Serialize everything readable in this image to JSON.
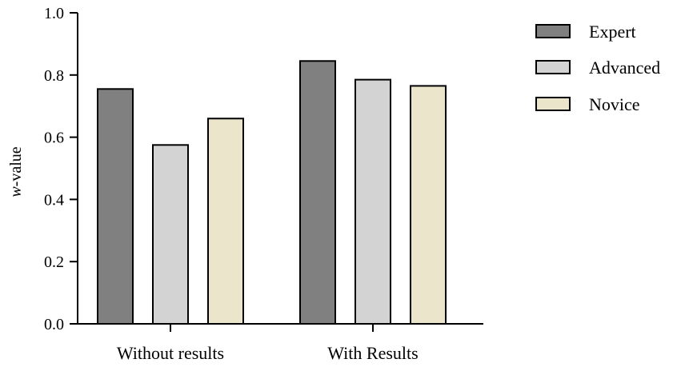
{
  "chart_data": {
    "type": "bar",
    "title": "",
    "xlabel": "",
    "ylabel_italic": "w",
    "ylabel_rest": "-value",
    "ylim": [
      0,
      1.0
    ],
    "yticks": [
      0.0,
      0.2,
      0.4,
      0.6,
      0.8,
      1.0
    ],
    "ytick_labels": [
      "0.0",
      "0.2",
      "0.4",
      "0.6",
      "0.8",
      "1.0"
    ],
    "categories": [
      "Without results",
      "With Results"
    ],
    "series": [
      {
        "name": "Expert",
        "values": [
          0.755,
          0.845
        ],
        "color": "#808080"
      },
      {
        "name": "Advanced",
        "values": [
          0.575,
          0.785
        ],
        "color": "#d3d3d3"
      },
      {
        "name": "Novice",
        "values": [
          0.66,
          0.765
        ],
        "color": "#ebe5cb"
      }
    ],
    "legend_position": "right",
    "grid": false
  }
}
